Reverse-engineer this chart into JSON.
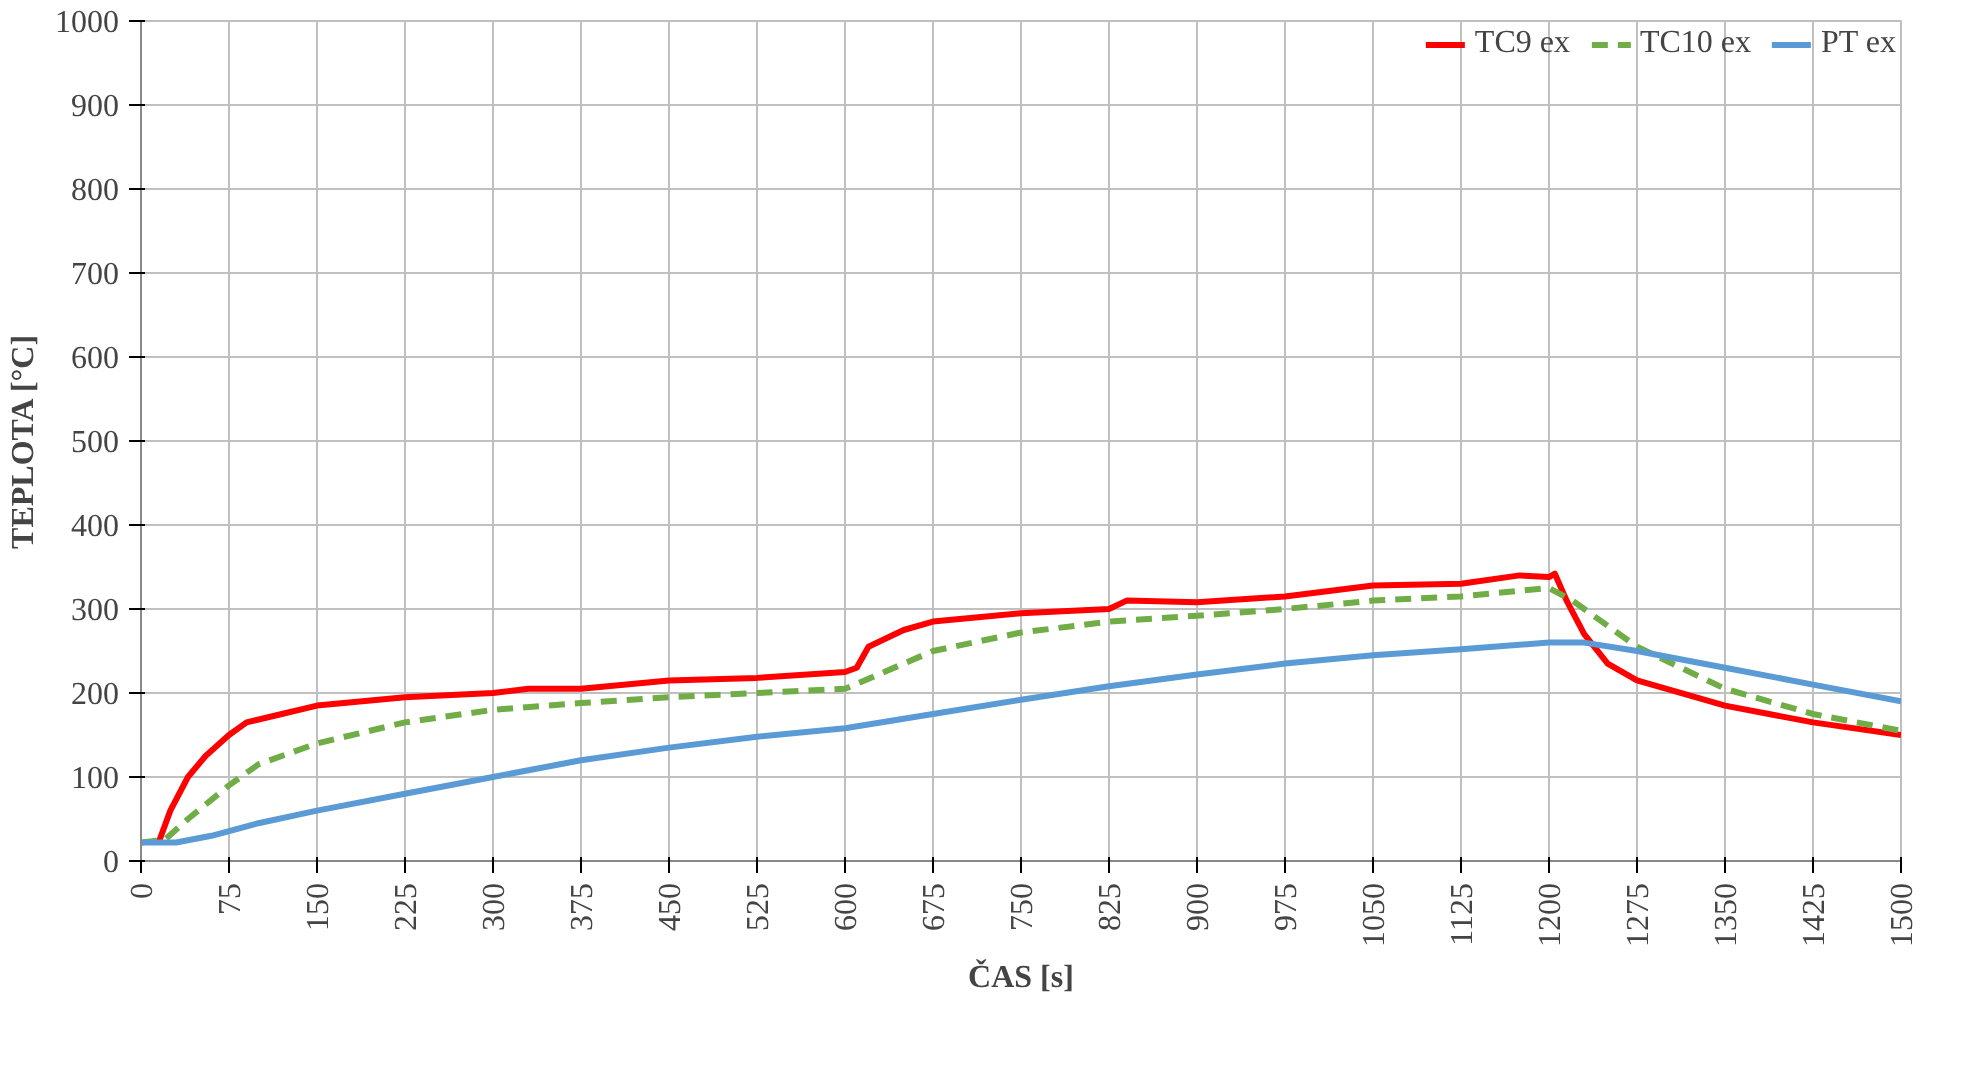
{
  "chart_data": {
    "type": "line",
    "xlabel": "ČAS [s]",
    "ylabel": "TEPLOTA [°C]",
    "xlim": [
      0,
      1500
    ],
    "ylim": [
      0,
      1000
    ],
    "xticks": [
      0,
      75,
      150,
      225,
      300,
      375,
      450,
      525,
      600,
      675,
      750,
      825,
      900,
      975,
      1050,
      1125,
      1200,
      1275,
      1350,
      1425,
      1500
    ],
    "yticks": [
      0,
      100,
      200,
      300,
      400,
      500,
      600,
      700,
      800,
      900,
      1000
    ],
    "grid": true,
    "legend": "top right",
    "marker": "none",
    "series": [
      {
        "name": "TC9 ex",
        "color": "#ff0000",
        "line_style": "solid",
        "x": [
          15,
          25,
          40,
          55,
          75,
          90,
          120,
          150,
          225,
          300,
          330,
          375,
          450,
          525,
          600,
          610,
          620,
          650,
          675,
          750,
          825,
          840,
          900,
          975,
          1050,
          1125,
          1175,
          1200,
          1205,
          1215,
          1230,
          1250,
          1275,
          1350,
          1425,
          1500
        ],
        "values": [
          22,
          60,
          100,
          125,
          150,
          165,
          175,
          185,
          195,
          200,
          205,
          205,
          215,
          218,
          225,
          230,
          255,
          275,
          285,
          295,
          300,
          310,
          308,
          315,
          328,
          330,
          340,
          338,
          342,
          310,
          270,
          235,
          215,
          185,
          165,
          150
        ]
      },
      {
        "name": "TC10 ex",
        "color": "#70ad47",
        "line_style": "dashed",
        "x": [
          0,
          20,
          40,
          75,
          100,
          150,
          225,
          300,
          375,
          450,
          525,
          600,
          625,
          675,
          750,
          825,
          900,
          975,
          1050,
          1125,
          1200,
          1220,
          1275,
          1350,
          1425,
          1500
        ],
        "values": [
          22,
          25,
          50,
          90,
          115,
          140,
          165,
          180,
          188,
          195,
          200,
          205,
          220,
          250,
          272,
          285,
          292,
          300,
          310,
          315,
          325,
          310,
          255,
          205,
          175,
          155
        ]
      },
      {
        "name": "PT ex",
        "color": "#5b9bd5",
        "line_style": "solid",
        "x": [
          0,
          30,
          60,
          100,
          150,
          225,
          300,
          375,
          450,
          525,
          600,
          675,
          750,
          825,
          900,
          975,
          1050,
          1125,
          1200,
          1230,
          1275,
          1350,
          1425,
          1500
        ],
        "values": [
          22,
          22,
          30,
          45,
          60,
          80,
          100,
          120,
          135,
          148,
          158,
          175,
          192,
          208,
          222,
          235,
          245,
          252,
          260,
          260,
          250,
          230,
          210,
          190
        ]
      }
    ]
  }
}
